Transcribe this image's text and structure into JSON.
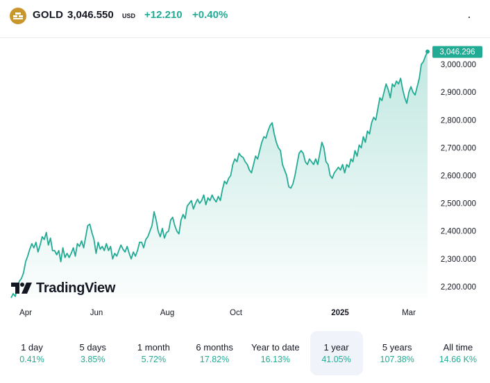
{
  "header": {
    "symbol": "GOLD",
    "price": "3,046.550",
    "currency": "USD",
    "change": "+12.210",
    "change_pct": "+0.40%"
  },
  "colors": {
    "accent": "#22ab94",
    "logo": "#c9962b",
    "text": "#131722"
  },
  "watermark": "TradingView",
  "chart_data": {
    "type": "area",
    "last_value_label": "3,046.296",
    "y_ticks": [
      "3,000.000",
      "2,900.000",
      "2,800.000",
      "2,700.000",
      "2,600.000",
      "2,500.000",
      "2,400.000",
      "2,300.000",
      "2,200.000"
    ],
    "y_tick_values": [
      3000,
      2900,
      2800,
      2700,
      2600,
      2500,
      2400,
      2300,
      2200
    ],
    "x_ticks": [
      "Apr",
      "Jun",
      "Aug",
      "Oct",
      "2025",
      "Mar"
    ],
    "x_tick_bold": [
      false,
      false,
      false,
      false,
      true,
      false
    ],
    "ylim": [
      2160,
      3075
    ],
    "start_month": "Mar 2024",
    "series": [
      {
        "name": "GOLD",
        "values": [
          2160,
          2175,
          2165,
          2200,
          2220,
          2230,
          2250,
          2290,
          2310,
          2335,
          2355,
          2340,
          2360,
          2325,
          2350,
          2380,
          2370,
          2395,
          2350,
          2375,
          2330,
          2330,
          2315,
          2330,
          2290,
          2340,
          2305,
          2320,
          2305,
          2320,
          2340,
          2310,
          2355,
          2345,
          2365,
          2340,
          2380,
          2420,
          2425,
          2395,
          2370,
          2320,
          2360,
          2335,
          2345,
          2330,
          2355,
          2330,
          2345,
          2300,
          2320,
          2310,
          2330,
          2350,
          2335,
          2325,
          2345,
          2320,
          2300,
          2325,
          2310,
          2330,
          2360,
          2360,
          2340,
          2370,
          2380,
          2400,
          2420,
          2470,
          2440,
          2400,
          2380,
          2410,
          2375,
          2395,
          2400,
          2440,
          2450,
          2420,
          2400,
          2390,
          2440,
          2460,
          2445,
          2490,
          2500,
          2510,
          2480,
          2500,
          2515,
          2500,
          2510,
          2530,
          2495,
          2520,
          2510,
          2530,
          2515,
          2505,
          2525,
          2510,
          2550,
          2580,
          2570,
          2590,
          2600,
          2640,
          2660,
          2650,
          2680,
          2670,
          2665,
          2650,
          2640,
          2620,
          2610,
          2640,
          2670,
          2660,
          2690,
          2720,
          2740,
          2735,
          2760,
          2780,
          2790,
          2750,
          2720,
          2700,
          2690,
          2640,
          2620,
          2600,
          2560,
          2555,
          2570,
          2600,
          2640,
          2680,
          2690,
          2680,
          2650,
          2640,
          2660,
          2650,
          2640,
          2660,
          2640,
          2680,
          2720,
          2700,
          2650,
          2640,
          2600,
          2590,
          2610,
          2620,
          2630,
          2620,
          2640,
          2610,
          2640,
          2630,
          2660,
          2650,
          2690,
          2670,
          2710,
          2700,
          2740,
          2720,
          2760,
          2750,
          2790,
          2810,
          2800,
          2840,
          2880,
          2870,
          2900,
          2930,
          2910,
          2880,
          2930,
          2920,
          2940,
          2930,
          2950,
          2910,
          2880,
          2860,
          2900,
          2920,
          2900,
          2890,
          2920,
          2950,
          3000,
          3010,
          3030,
          3046.296
        ]
      }
    ]
  },
  "time_ranges": [
    {
      "label": "1 day",
      "value": "0.41%",
      "active": false
    },
    {
      "label": "5 days",
      "value": "3.85%",
      "active": false
    },
    {
      "label": "1 month",
      "value": "5.72%",
      "active": false
    },
    {
      "label": "6 months",
      "value": "17.82%",
      "active": false
    },
    {
      "label": "Year to date",
      "value": "16.13%",
      "active": false
    },
    {
      "label": "1 year",
      "value": "41.05%",
      "active": true
    },
    {
      "label": "5 years",
      "value": "107.38%",
      "active": false
    },
    {
      "label": "All time",
      "value": "14.66 K%",
      "active": false
    }
  ]
}
